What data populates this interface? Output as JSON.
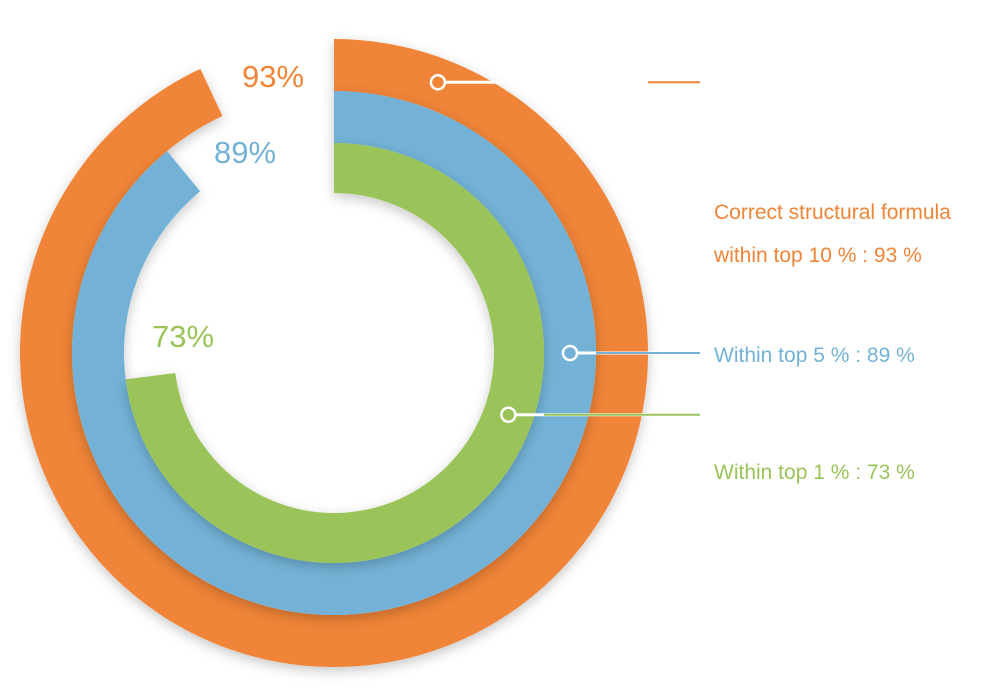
{
  "chart_data": {
    "type": "radial-bar",
    "max": 100,
    "series": [
      {
        "name": "Correct structural formula within top 10 %",
        "value": 93,
        "value_label": "93%",
        "color": "#F08437",
        "legend": [
          "Correct structural formula",
          "within top 10 % : 93 %"
        ]
      },
      {
        "name": "Within top 5 %",
        "value": 89,
        "value_label": "89%",
        "color": "#73B2D6",
        "legend": [
          "Within top 5 % : 89 %"
        ]
      },
      {
        "name": "Within top 1 %",
        "value": 73,
        "value_label": "73%",
        "color": "#9AC45A",
        "legend": [
          "Within top 1 % : 73 %"
        ]
      }
    ]
  }
}
